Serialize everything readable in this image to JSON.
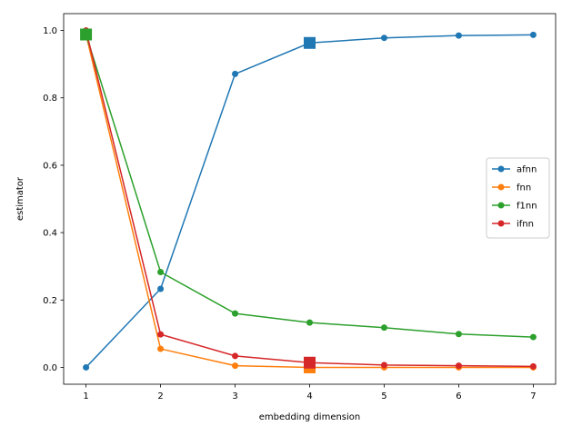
{
  "chart_data": {
    "type": "line",
    "title": "",
    "xlabel": "embedding dimension",
    "ylabel": "estimator",
    "x": [
      1,
      2,
      3,
      4,
      5,
      6,
      7
    ],
    "xlim": [
      0.7,
      7.3
    ],
    "ylim": [
      -0.05,
      1.05
    ],
    "xticks": [
      1,
      2,
      3,
      4,
      5,
      6,
      7
    ],
    "yticks": [
      0.0,
      0.2,
      0.4,
      0.6,
      0.8,
      1.0
    ],
    "xtick_labels": [
      "1",
      "2",
      "3",
      "4",
      "5",
      "6",
      "7"
    ],
    "ytick_labels": [
      "0.0",
      "0.2",
      "0.4",
      "0.6",
      "0.8",
      "1.0"
    ],
    "grid": false,
    "legend_position": "center-right",
    "series": [
      {
        "name": "afnn",
        "color": "#1f77b4",
        "values": [
          0.0,
          0.233,
          0.871,
          0.963,
          0.978,
          0.985,
          0.987
        ],
        "highlight_index": 3
      },
      {
        "name": "fnn",
        "color": "#ff7f0e",
        "values": [
          0.988,
          0.055,
          0.005,
          0.0,
          0.0,
          0.0,
          0.0
        ],
        "highlight_index": 3
      },
      {
        "name": "f1nn",
        "color": "#2ca02c",
        "values": [
          0.988,
          0.283,
          0.16,
          0.133,
          0.118,
          0.099,
          0.09
        ],
        "highlight_index": 0
      },
      {
        "name": "ifnn",
        "color": "#d62728",
        "values": [
          1.0,
          0.098,
          0.034,
          0.014,
          0.007,
          0.005,
          0.003
        ],
        "highlight_index": 3
      }
    ]
  }
}
